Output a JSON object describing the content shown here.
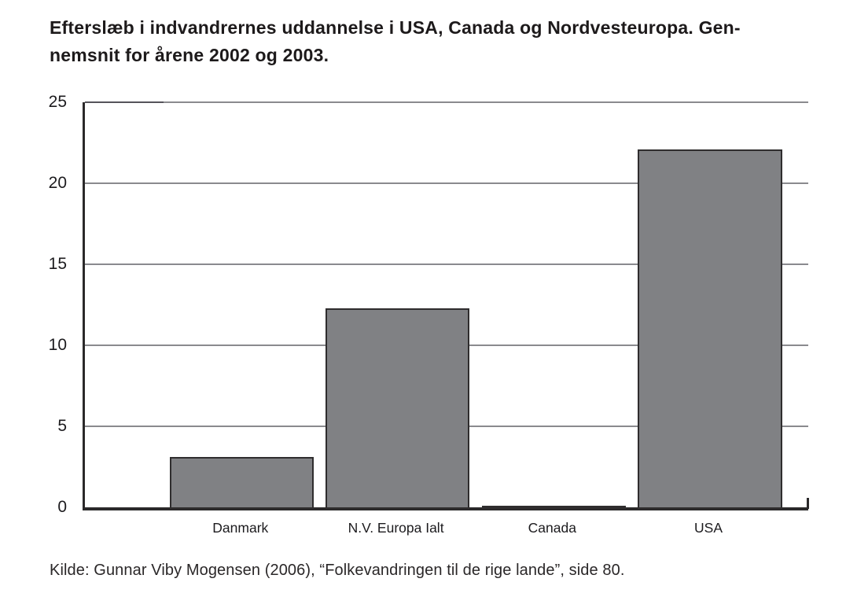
{
  "title": {
    "lines": [
      "Efterslæb i indvandrernes uddannelse i USA, Canada og Nordvesteuropa. Gen-",
      "nemsnit for årene 2002 og 2003."
    ]
  },
  "source": "Kilde: Gunnar Viby Mogensen (2006), “Folkevandringen til de rige lande”, side 80.",
  "chart_data": {
    "type": "bar",
    "title": "Efterslæb i indvandrernes uddannelse i USA, Canada og Nordvesteuropa. Gennemsnit for årene 2002 og 2003.",
    "categories": [
      "Danmark",
      "N.V. Europa Ialt",
      "Canada",
      "USA"
    ],
    "values": [
      3,
      12.2,
      0,
      22
    ],
    "xlabel": "",
    "ylabel": "",
    "ylim": [
      0,
      25
    ],
    "yticks": [
      0,
      5,
      10,
      15,
      20,
      25
    ],
    "grid": true,
    "legend": false,
    "bar_color": "#808184",
    "bar_border_color": "#2f2d2e",
    "axis_color": "#2b292a",
    "gridline_color": "#8a8a8e",
    "bar_centers_pct": [
      21.5,
      43.0,
      64.6,
      86.2
    ],
    "bar_width_pct": 19.5
  }
}
